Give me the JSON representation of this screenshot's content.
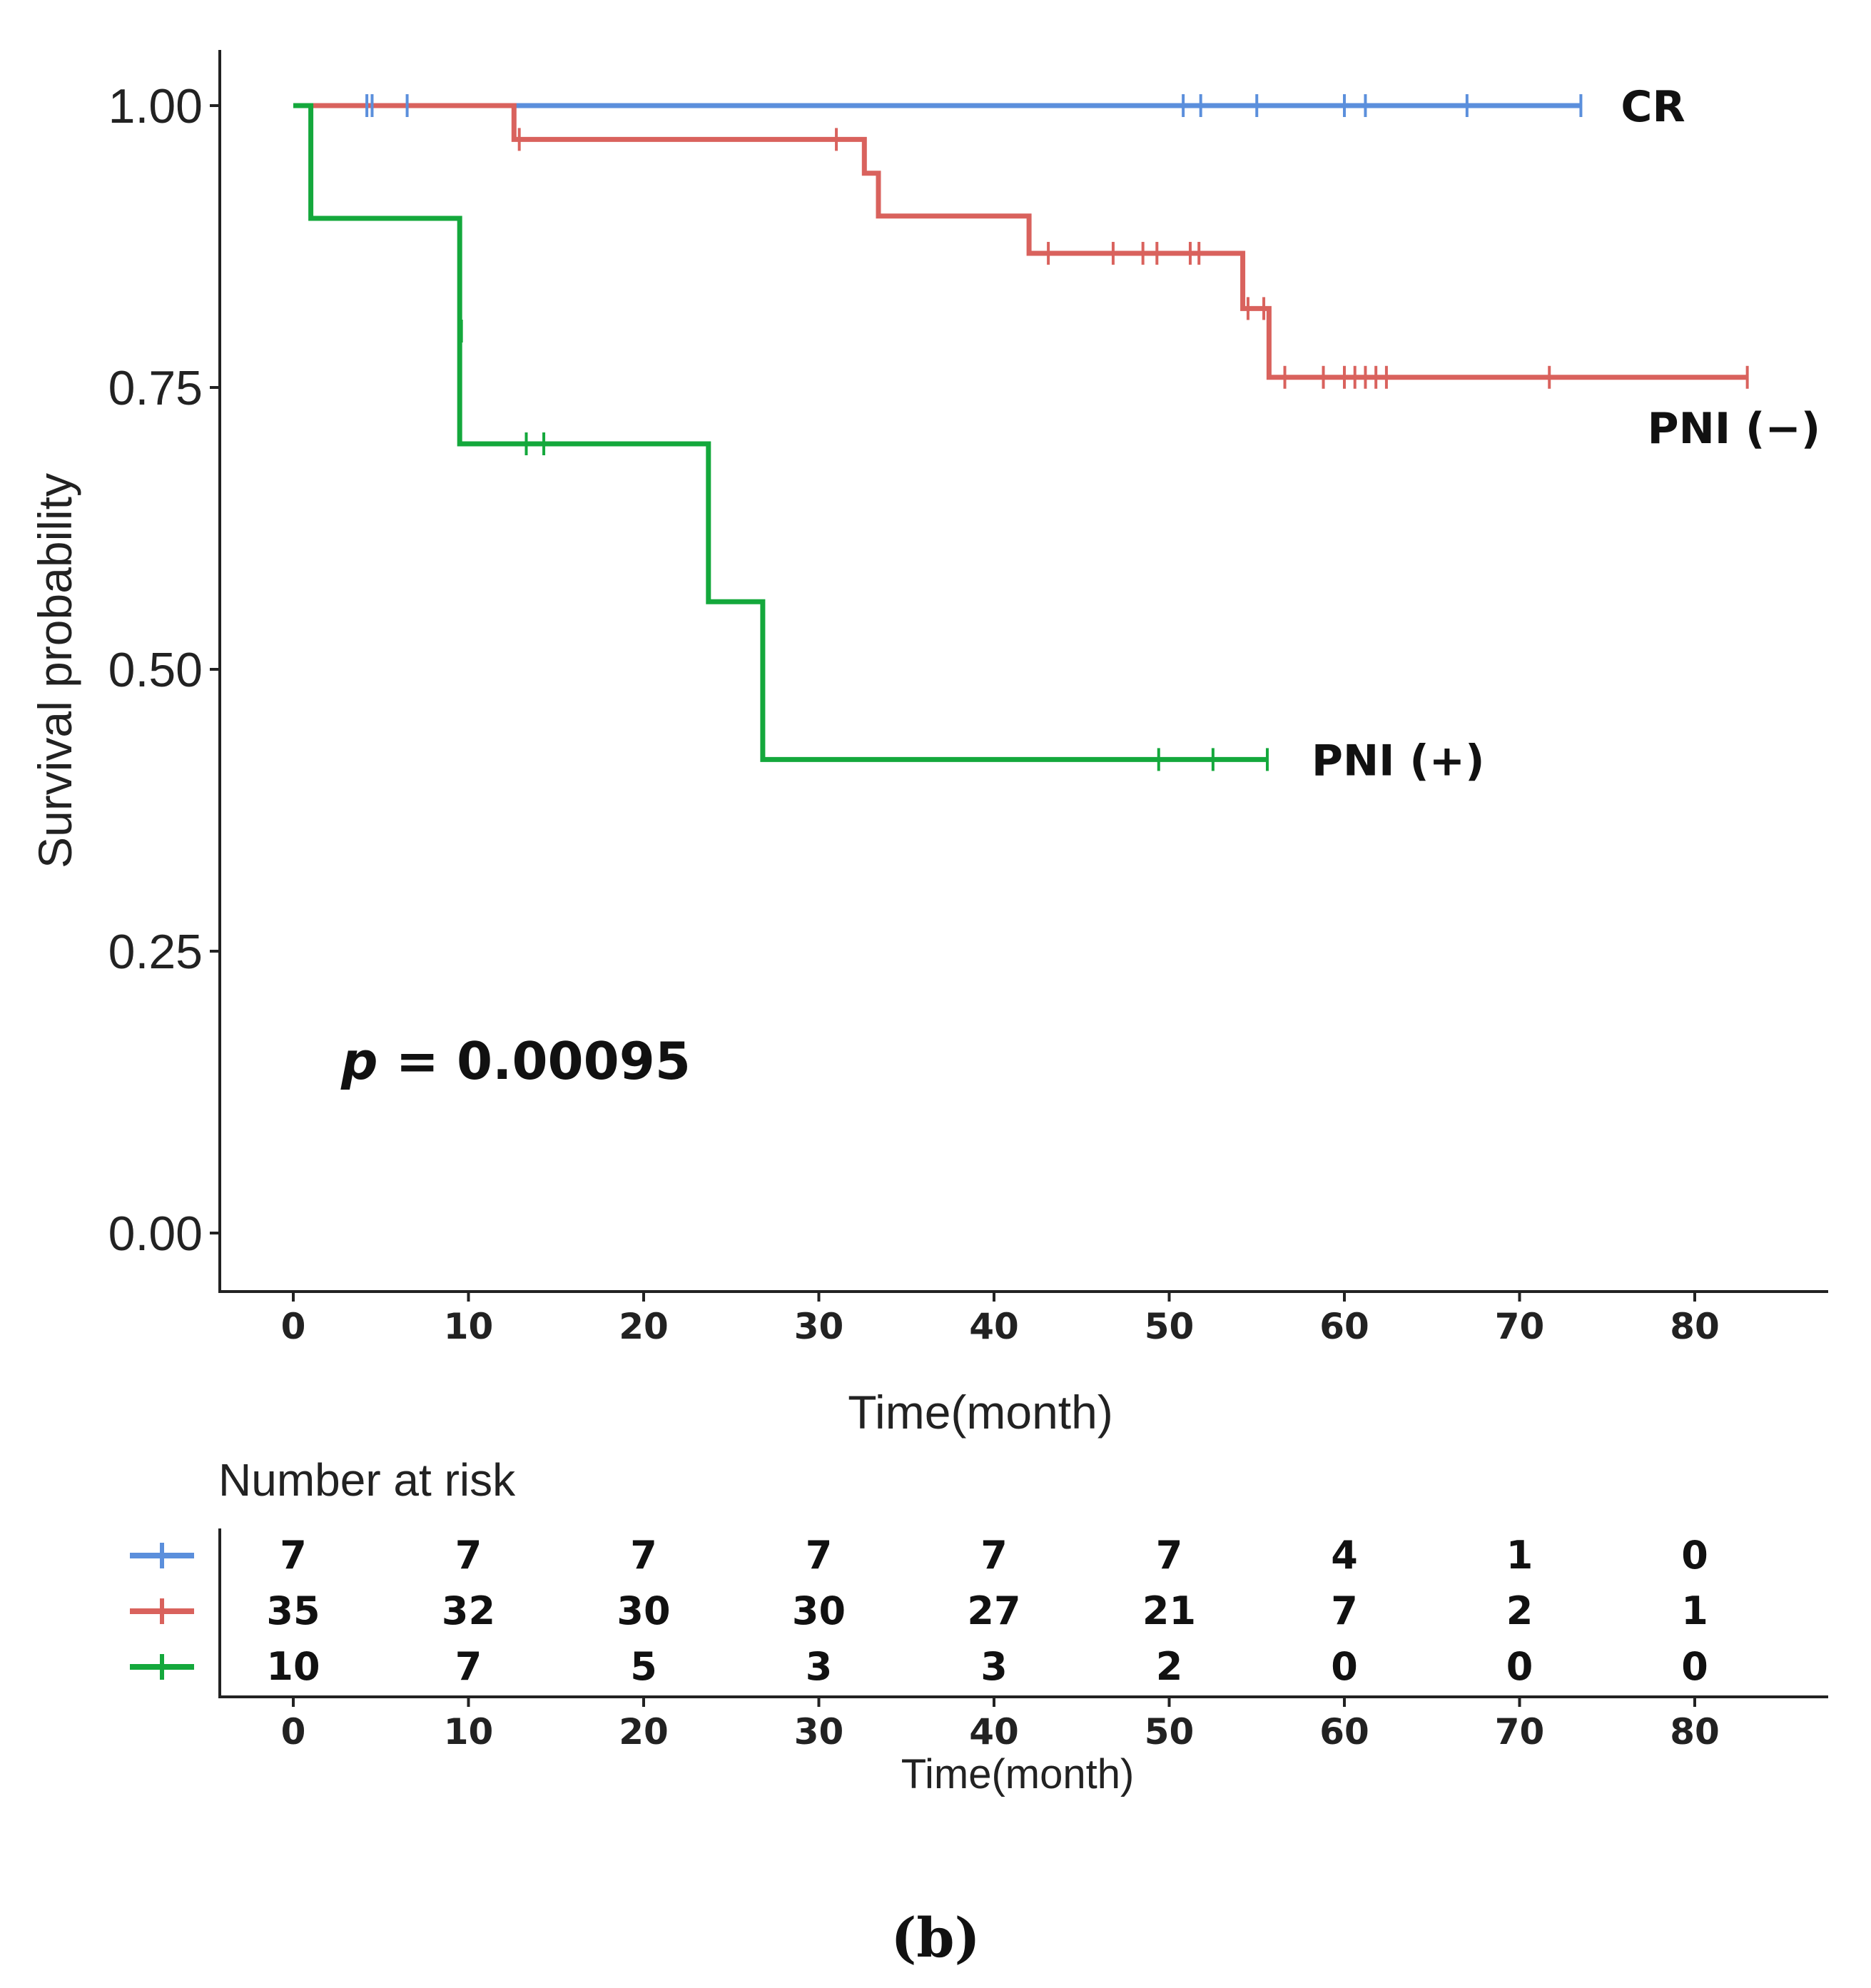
{
  "panel_label": "(b)",
  "colors": {
    "CR": "#5b8fdc",
    "PNI (−)": "#d9625d",
    "PNI (+)": "#14a83c",
    "axis": "#222222"
  },
  "chart_data": {
    "type": "line",
    "subtype": "kaplan-meier",
    "ylabel": "Survival probability",
    "xlabel": "Time(month)",
    "xlim": [
      -4,
      87
    ],
    "ylim": [
      -0.04,
      1.04
    ],
    "xticks": [
      0,
      10,
      20,
      30,
      40,
      50,
      60,
      70,
      80
    ],
    "yticks": [
      "0.00",
      "0.25",
      "0.50",
      "0.75",
      "1.00"
    ],
    "annotation": {
      "prefix": "p",
      "text": " = 0.00095"
    },
    "series": [
      {
        "name": "CR",
        "steps": [
          [
            0,
            1.0
          ],
          [
            73.5,
            1.0
          ]
        ],
        "censored": [
          [
            4.2,
            1.0
          ],
          [
            4.5,
            1.0
          ],
          [
            6.5,
            1.0
          ],
          [
            50.8,
            1.0
          ],
          [
            51.8,
            1.0
          ],
          [
            55.0,
            1.0
          ],
          [
            60.0,
            1.0
          ],
          [
            61.2,
            1.0
          ],
          [
            67.0,
            1.0
          ],
          [
            73.5,
            1.0
          ]
        ]
      },
      {
        "name": "PNI (−)",
        "steps": [
          [
            0,
            1.0
          ],
          [
            12.6,
            1.0
          ],
          [
            12.6,
            0.97
          ],
          [
            32.6,
            0.97
          ],
          [
            32.6,
            0.94
          ],
          [
            33.4,
            0.94
          ],
          [
            33.4,
            0.902
          ],
          [
            42.0,
            0.902
          ],
          [
            42.0,
            0.869
          ],
          [
            54.2,
            0.869
          ],
          [
            54.2,
            0.82
          ],
          [
            55.7,
            0.82
          ],
          [
            55.7,
            0.759
          ],
          [
            83.0,
            0.759
          ]
        ],
        "censored": [
          [
            12.9,
            0.97
          ],
          [
            31.0,
            0.97
          ],
          [
            43.1,
            0.869
          ],
          [
            46.8,
            0.869
          ],
          [
            48.5,
            0.869
          ],
          [
            49.3,
            0.869
          ],
          [
            51.2,
            0.869
          ],
          [
            51.7,
            0.869
          ],
          [
            54.5,
            0.82
          ],
          [
            55.4,
            0.82
          ],
          [
            56.6,
            0.759
          ],
          [
            58.8,
            0.759
          ],
          [
            60.0,
            0.759
          ],
          [
            60.6,
            0.759
          ],
          [
            61.2,
            0.759
          ],
          [
            61.8,
            0.759
          ],
          [
            62.4,
            0.759
          ],
          [
            71.7,
            0.759
          ],
          [
            83.0,
            0.759
          ]
        ]
      },
      {
        "name": "PNI (+)",
        "steps": [
          [
            0,
            1.0
          ],
          [
            1.0,
            1.0
          ],
          [
            1.0,
            0.9
          ],
          [
            9.5,
            0.9
          ],
          [
            9.5,
            0.7
          ],
          [
            23.7,
            0.7
          ],
          [
            23.7,
            0.56
          ],
          [
            26.8,
            0.56
          ],
          [
            26.8,
            0.42
          ],
          [
            55.6,
            0.42
          ]
        ],
        "censored": [
          [
            9.6,
            0.8
          ],
          [
            13.3,
            0.7
          ],
          [
            14.3,
            0.7
          ],
          [
            49.4,
            0.42
          ],
          [
            52.5,
            0.42
          ],
          [
            55.6,
            0.42
          ]
        ]
      }
    ]
  },
  "risk_table": {
    "title": "Number at risk",
    "xlabel": "Time(month)",
    "times": [
      0,
      10,
      20,
      30,
      40,
      50,
      60,
      70,
      80
    ],
    "rows": [
      {
        "series": "CR",
        "values": [
          "7",
          "7",
          "7",
          "7",
          "7",
          "7",
          "4",
          "1",
          "0"
        ]
      },
      {
        "series": "PNI (−)",
        "values": [
          "35",
          "32",
          "30",
          "30",
          "27",
          "21",
          "7",
          "2",
          "1"
        ]
      },
      {
        "series": "PNI (+)",
        "values": [
          "10",
          "7",
          "5",
          "3",
          "3",
          "2",
          "0",
          "0",
          "0"
        ]
      }
    ]
  }
}
